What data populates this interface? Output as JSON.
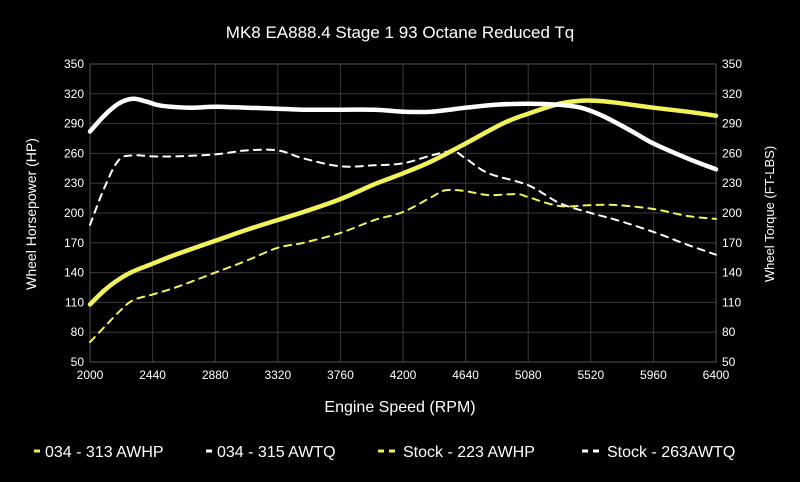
{
  "chart_data": {
    "type": "line",
    "title": "MK8 EA888.4 Stage 1 93 Octane Reduced Tq",
    "xlabel": "Engine Speed (RPM)",
    "ylabel_left": "Wheel Horsepower (HP)",
    "ylabel_right": "Wheel Torque (FT-LBS)",
    "xlim": [
      2000,
      6400
    ],
    "ylim": [
      50,
      350
    ],
    "x_ticks": [
      "2000",
      "2440",
      "2880",
      "3320",
      "3760",
      "4200",
      "4640",
      "5080",
      "5520",
      "5960",
      "6400"
    ],
    "y_ticks_left": [
      "350",
      "320",
      "290",
      "260",
      "230",
      "200",
      "170",
      "140",
      "110",
      "80",
      "50"
    ],
    "y_ticks_right": [
      "350",
      "320",
      "290",
      "260",
      "230",
      "200",
      "170",
      "140",
      "110",
      "80",
      "50"
    ],
    "grid": true,
    "legend_position": "bottom",
    "series": [
      {
        "name": "034 - 313 AWHP",
        "color": "#f2f25a",
        "style": "solid",
        "x": [
          2000,
          2100,
          2200,
          2300,
          2440,
          2600,
          2880,
          3100,
          3320,
          3500,
          3760,
          4000,
          4200,
          4400,
          4640,
          4900,
          5080,
          5300,
          5450,
          5550,
          5700,
          5960,
          6200,
          6400
        ],
        "y": [
          108,
          122,
          133,
          141,
          149,
          158,
          172,
          183,
          193,
          201,
          214,
          229,
          240,
          252,
          270,
          290,
          300,
          310,
          313,
          313,
          311,
          306,
          302,
          298
        ]
      },
      {
        "name": "034 - 315 AWTQ",
        "color": "#ffffff",
        "style": "solid",
        "x": [
          2000,
          2100,
          2200,
          2300,
          2400,
          2500,
          2700,
          2880,
          3100,
          3320,
          3500,
          3760,
          4000,
          4200,
          4400,
          4640,
          4850,
          5080,
          5300,
          5450,
          5600,
          5800,
          5960,
          6200,
          6400
        ],
        "y": [
          282,
          298,
          310,
          315,
          312,
          308,
          306,
          307,
          306,
          305,
          304,
          304,
          304,
          302,
          302,
          306,
          309,
          310,
          309,
          306,
          298,
          283,
          270,
          255,
          244
        ]
      },
      {
        "name": "Stock - 223 AWHP",
        "color": "#f2f25a",
        "style": "dashed",
        "x": [
          2000,
          2100,
          2200,
          2300,
          2440,
          2600,
          2880,
          3100,
          3320,
          3500,
          3760,
          4000,
          4200,
          4400,
          4500,
          4640,
          4800,
          5000,
          5080,
          5300,
          5520,
          5700,
          5960,
          6200,
          6400
        ],
        "y": [
          70,
          85,
          100,
          112,
          118,
          125,
          140,
          152,
          165,
          170,
          180,
          193,
          201,
          216,
          223,
          222,
          218,
          219,
          216,
          207,
          208,
          208,
          204,
          197,
          194
        ]
      },
      {
        "name": "Stock - 263AWTQ",
        "color": "#ffffff",
        "style": "dashed",
        "x": [
          2000,
          2100,
          2200,
          2300,
          2440,
          2600,
          2880,
          3100,
          3320,
          3500,
          3760,
          4000,
          4200,
          4400,
          4550,
          4640,
          4800,
          5080,
          5300,
          5520,
          5700,
          5960,
          6200,
          6400
        ],
        "y": [
          188,
          225,
          253,
          258,
          257,
          257,
          259,
          263,
          263,
          255,
          247,
          248,
          250,
          258,
          262,
          255,
          240,
          228,
          210,
          200,
          193,
          181,
          168,
          158
        ]
      }
    ]
  }
}
